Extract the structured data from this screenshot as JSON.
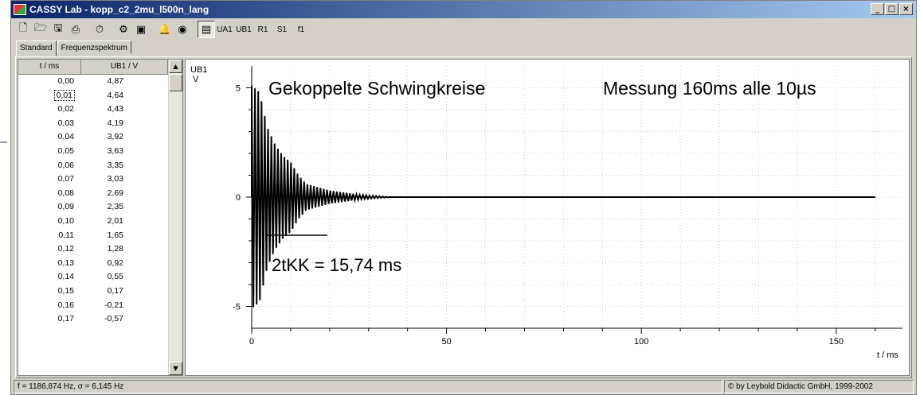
{
  "window": {
    "title": "CASSY Lab - kopp_c2_2mu_l500n_lang"
  },
  "titlebar_buttons": {
    "minimize": "_",
    "maximize": "□",
    "close": "×"
  },
  "toolbar": {
    "buttons": [
      {
        "icon": "new-file-icon"
      },
      {
        "icon": "open-file-icon"
      },
      {
        "icon": "save-file-icon"
      },
      {
        "icon": "print-icon"
      },
      {
        "icon": "stopwatch-icon"
      },
      {
        "icon": "settings-icon"
      },
      {
        "icon": "display-icon"
      },
      {
        "icon": "bell-icon"
      },
      {
        "icon": "speaker-icon"
      },
      {
        "icon": "table-view-icon"
      }
    ],
    "channels": [
      "UA1",
      "UB1",
      "R1",
      "S1",
      "f1"
    ]
  },
  "tabs": [
    "Standard",
    "Frequenzspektrum"
  ],
  "table": {
    "headers": [
      "t / ms",
      "UB1 / V"
    ],
    "rows": [
      [
        "0,00",
        "4,87"
      ],
      [
        "0,01",
        "4,64"
      ],
      [
        "0,02",
        "4,43"
      ],
      [
        "0,03",
        "4,19"
      ],
      [
        "0,04",
        "3,92"
      ],
      [
        "0,05",
        "3,63"
      ],
      [
        "0,06",
        "3,35"
      ],
      [
        "0,07",
        "3,03"
      ],
      [
        "0,08",
        "2,69"
      ],
      [
        "0,09",
        "2,35"
      ],
      [
        "0,10",
        "2,01"
      ],
      [
        "0,11",
        "1,65"
      ],
      [
        "0,12",
        "1,28"
      ],
      [
        "0,13",
        "0,92"
      ],
      [
        "0,14",
        "0,55"
      ],
      [
        "0,15",
        "0,17"
      ],
      [
        "0,16",
        "-0,21"
      ],
      [
        "0,17",
        "-0,57"
      ]
    ]
  },
  "chart_data": {
    "type": "line",
    "title": "Gekoppelte Schwingkreise",
    "annotation_right": "Messung  160ms  alle 10µs",
    "annotation_measure": "2tKK =  15,74 ms",
    "ylabel": "UB1",
    "yunit": "V",
    "xlabel": "t / ms",
    "xlim": [
      0,
      167
    ],
    "ylim": [
      -6,
      6
    ],
    "x_ticks": [
      0,
      50,
      100,
      150
    ],
    "y_ticks": [
      -5,
      0,
      5
    ],
    "grid": true,
    "series": [
      {
        "description": "damped coupled oscillation with beats",
        "points": [
          [
            0,
            5.1
          ],
          [
            2,
            -4.8
          ],
          [
            4,
            3.2
          ],
          [
            6,
            -2.4
          ],
          [
            8,
            1.9
          ],
          [
            10,
            -1.6
          ],
          [
            12,
            1.0
          ],
          [
            14,
            -0.6
          ],
          [
            16,
            0.5
          ],
          [
            18,
            -0.4
          ],
          [
            20,
            0.3
          ],
          [
            24,
            0.2
          ],
          [
            28,
            0.1
          ],
          [
            32,
            0.05
          ],
          [
            36,
            0
          ],
          [
            160,
            0
          ]
        ]
      }
    ]
  },
  "status": {
    "left": "f = 1186,874 Hz,  σ = 6,145 Hz",
    "right": "© by Leybold Didactic GmbH, 1999-2002"
  }
}
